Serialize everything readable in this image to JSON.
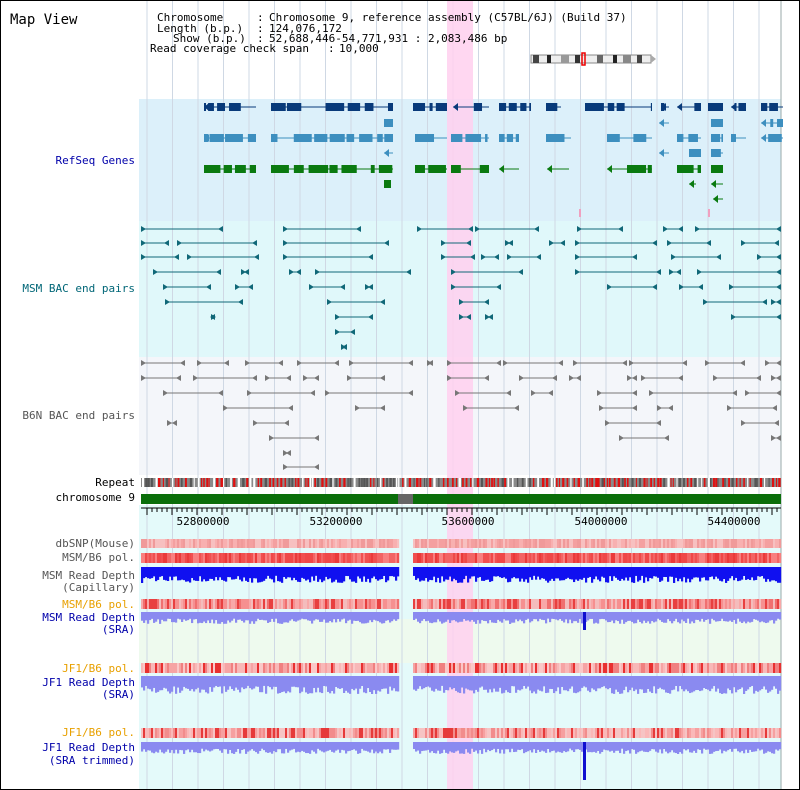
{
  "header": {
    "view_title": "Map View",
    "chromosome_label": "Chromosome",
    "chromosome_value": "Chromosome 9, reference assembly (C57BL/6J) (Build 37)",
    "length_label": "Length (b.p.)",
    "length_value": "124,076,172",
    "show_label": "Show (b.p.)",
    "show_value": "52,688,446-54,771,931 : 2,083,486 bp",
    "span_label": "Read coverage check span",
    "span_value": "10,000"
  },
  "tracks": {
    "refseq": "RefSeq Genes",
    "msm_bac": "MSM BAC end pairs",
    "b6n_bac": "B6N BAC end pairs",
    "repeat": "Repeat",
    "chromosome": "chromosome 9",
    "dbsnp": "dbSNP(Mouse)",
    "msm_b6_pol_1": "MSM/B6 pol.",
    "msm_depth_cap_1": "MSM Read Depth",
    "msm_depth_cap_2": "(Capillary)",
    "msm_b6_pol_2": "MSM/B6 pol.",
    "msm_depth_sra_1": "MSM Read Depth",
    "msm_depth_sra_2": "(SRA)",
    "jf1_b6_pol_1": "JF1/B6 pol.",
    "jf1_depth_sra_1": "JF1 Read Depth",
    "jf1_depth_sra_2": "(SRA)",
    "jf1_b6_pol_2": "JF1/B6 pol.",
    "jf1_depth_trim_1": "JF1 Read Depth",
    "jf1_depth_trim_2": "(SRA trimmed)"
  },
  "ruler": {
    "ticks": [
      "52800000",
      "53200000",
      "53600000",
      "54000000",
      "54400000"
    ]
  },
  "colors": {
    "label_dark": "#000000",
    "label_blue": "#0000aa",
    "label_teal": "#006677",
    "label_gray": "#555555",
    "label_orange": "#e8a000",
    "refseq_dark": "#083a7a",
    "refseq_mid": "#3d8fbf",
    "refseq_green": "#0a7a10",
    "chromosome_green": "#0a6e0a",
    "highlight_pink": "#ffd0ee",
    "depth_blue": "#1010f0",
    "depth_light": "#8a8af0"
  }
}
